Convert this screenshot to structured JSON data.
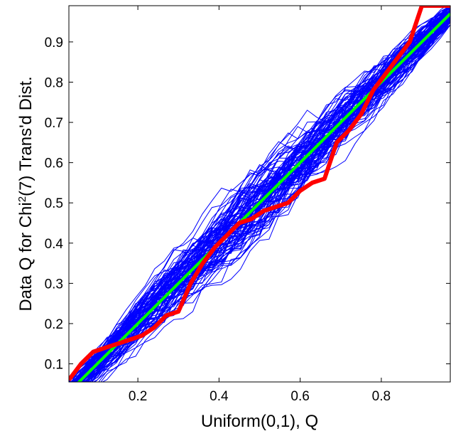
{
  "chart_data": {
    "type": "line",
    "title": "",
    "xlabel": "Uniform(0,1), Q",
    "ylabel_parts": {
      "before": "Data Q for Chi",
      "sup": "2",
      "after": "(7) Trans'd Dist."
    },
    "xlim": [
      0.03,
      0.97
    ],
    "ylim": [
      0.055,
      0.99
    ],
    "xticks": [
      0.2,
      0.4,
      0.6,
      0.8
    ],
    "xtick_labels": [
      "0.2",
      "0.4",
      "0.6",
      "0.8"
    ],
    "yticks": [
      0.1,
      0.2,
      0.3,
      0.4,
      0.5,
      0.6,
      0.7,
      0.8,
      0.9
    ],
    "ytick_labels": [
      "0.1",
      "0.2",
      "0.3",
      "0.4",
      "0.5",
      "0.6",
      "0.7",
      "0.8",
      "0.9"
    ],
    "grid": false,
    "legend": "none",
    "colors": {
      "simulated": "#0000ff",
      "data": "#ff0000",
      "reference": "#00ff00"
    },
    "simulated_bundle": {
      "count": 100,
      "description_values_only": true
    },
    "series": [
      {
        "role": "data",
        "x": [
          0.03,
          0.06,
          0.09,
          0.12,
          0.15,
          0.18,
          0.21,
          0.24,
          0.27,
          0.3,
          0.33,
          0.36,
          0.39,
          0.42,
          0.45,
          0.48,
          0.51,
          0.54,
          0.57,
          0.6,
          0.63,
          0.66,
          0.69,
          0.72,
          0.75,
          0.78,
          0.81,
          0.84,
          0.87,
          0.9,
          0.93,
          0.97
        ],
        "y": [
          0.06,
          0.1,
          0.13,
          0.14,
          0.15,
          0.16,
          0.17,
          0.19,
          0.22,
          0.23,
          0.3,
          0.35,
          0.39,
          0.42,
          0.45,
          0.46,
          0.48,
          0.49,
          0.5,
          0.53,
          0.55,
          0.56,
          0.65,
          0.68,
          0.72,
          0.78,
          0.82,
          0.86,
          0.9,
          0.99,
          0.99,
          0.99
        ]
      },
      {
        "role": "reference",
        "x": [
          0.03,
          0.97
        ],
        "y": [
          0.03,
          0.97
        ]
      }
    ]
  }
}
